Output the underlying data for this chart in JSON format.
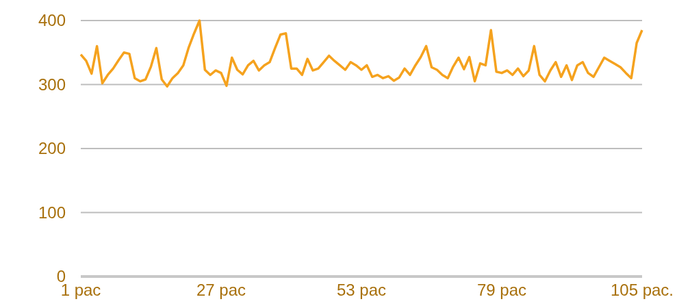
{
  "chart_data": {
    "type": "line",
    "x": [
      1,
      2,
      3,
      4,
      5,
      6,
      7,
      8,
      9,
      10,
      11,
      12,
      13,
      14,
      15,
      16,
      17,
      18,
      19,
      20,
      21,
      22,
      23,
      24,
      25,
      26,
      27,
      28,
      29,
      30,
      31,
      32,
      33,
      34,
      35,
      36,
      37,
      38,
      39,
      40,
      41,
      42,
      43,
      44,
      45,
      46,
      47,
      48,
      49,
      50,
      51,
      52,
      53,
      54,
      55,
      56,
      57,
      58,
      59,
      60,
      61,
      62,
      63,
      64,
      65,
      66,
      67,
      68,
      69,
      70,
      71,
      72,
      73,
      74,
      75,
      76,
      77,
      78,
      79,
      80,
      81,
      82,
      83,
      84,
      85,
      86,
      87,
      88,
      89,
      90,
      91,
      92,
      93,
      94,
      95,
      96,
      97,
      98,
      99,
      100,
      101,
      102,
      103,
      104,
      105
    ],
    "series": [
      {
        "color": "#f5a21e",
        "values": [
          347,
          337,
          317,
          360,
          302,
          315,
          325,
          338,
          350,
          348,
          310,
          305,
          308,
          328,
          357,
          308,
          297,
          310,
          318,
          330,
          358,
          380,
          400,
          323,
          315,
          322,
          318,
          298,
          342,
          323,
          316,
          330,
          337,
          322,
          330,
          335,
          357,
          378,
          380,
          325,
          325,
          315,
          340,
          322,
          325,
          335,
          345,
          337,
          330,
          323,
          335,
          330,
          323,
          330,
          312,
          315,
          310,
          313,
          306,
          311,
          325,
          315,
          330,
          343,
          360,
          327,
          323,
          315,
          310,
          328,
          342,
          324,
          343,
          305,
          333,
          330,
          385,
          320,
          318,
          322,
          315,
          325,
          313,
          322,
          360,
          315,
          305,
          322,
          335,
          312,
          330,
          307,
          330,
          335,
          318,
          312,
          327,
          342,
          337,
          332,
          327,
          318,
          310,
          365,
          385
        ]
      }
    ],
    "xlim": [
      1,
      105
    ],
    "xticks": [
      {
        "value": 1,
        "label": "1 pac"
      },
      {
        "value": 27,
        "label": "27 pac"
      },
      {
        "value": 53,
        "label": "53 pac"
      },
      {
        "value": 79,
        "label": "79 pac"
      },
      {
        "value": 105,
        "label": "105 pac."
      }
    ],
    "ylim": [
      0,
      400
    ],
    "yticks": [
      0,
      100,
      200,
      300,
      400
    ],
    "grid": "y"
  }
}
